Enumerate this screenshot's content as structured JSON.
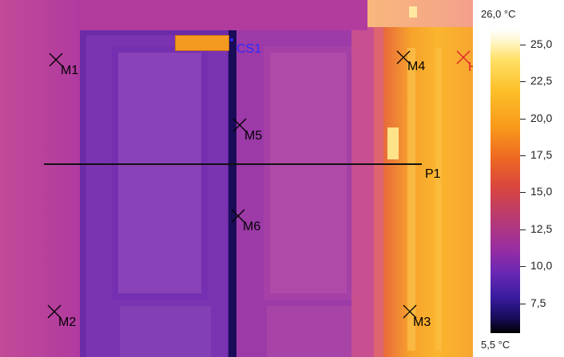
{
  "image": {
    "markers": [
      {
        "label": "M1"
      },
      {
        "label": "M2"
      },
      {
        "label": "M3"
      },
      {
        "label": "M4"
      },
      {
        "label": "M5"
      },
      {
        "label": "M6"
      }
    ],
    "cursor_label": "CS1",
    "profile_label": "P1",
    "partial_marker_label": "H"
  },
  "scale": {
    "max_label": "26,0 °C",
    "min_label": "5,5 °C",
    "ticks": [
      "25,0",
      "22,5",
      "20,0",
      "17,5",
      "15,0",
      "12,5",
      "10,0",
      "7,5"
    ],
    "tick_values": [
      25.0,
      22.5,
      20.0,
      17.5,
      15.0,
      12.5,
      10.0,
      7.5
    ],
    "min_value": 5.5,
    "max_value": 26.0
  },
  "colors": {
    "scale_hot": "#ffffff",
    "scale_cold": "#000000",
    "cursor": "#2a2aff",
    "partial_marker": "#e0202a"
  }
}
